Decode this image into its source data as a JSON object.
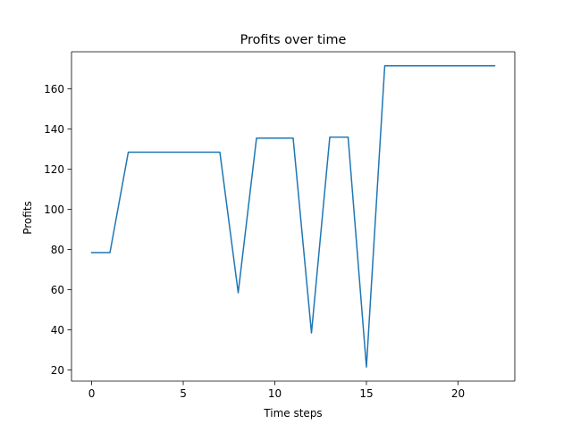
{
  "chart_data": {
    "type": "line",
    "title": "Profits over time",
    "xlabel": "Time steps",
    "ylabel": "Profits",
    "xlim": [
      -1.1,
      23.1
    ],
    "ylim": [
      14.5,
      178.5
    ],
    "xticks": [
      0,
      5,
      10,
      15,
      20
    ],
    "yticks": [
      20,
      40,
      60,
      80,
      100,
      120,
      140,
      160
    ],
    "grid": false,
    "series": [
      {
        "color": "#1f77b4",
        "x": [
          0,
          1,
          2,
          3,
          4,
          5,
          6,
          7,
          8,
          9,
          10,
          11,
          12,
          13,
          14,
          15,
          16,
          17,
          18,
          19,
          20,
          21,
          22
        ],
        "values": [
          78.5,
          78.5,
          128.5,
          128.5,
          128.5,
          128.5,
          128.5,
          128.5,
          58.5,
          135.5,
          135.5,
          135.5,
          38.5,
          136,
          136,
          21.5,
          171.5,
          171.5,
          171.5,
          171.5,
          171.5,
          171.5,
          171.5
        ]
      }
    ]
  }
}
